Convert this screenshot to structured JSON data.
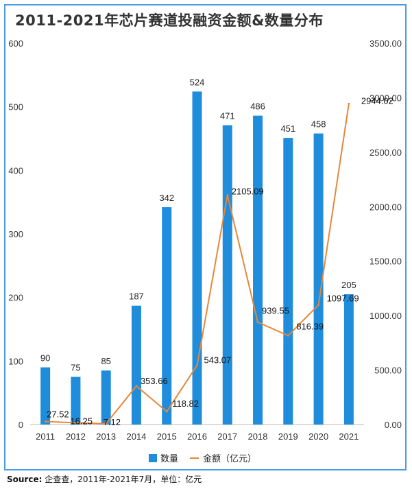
{
  "title": "2011-2021年芯片赛道投融资金额&数量分布",
  "source_label": "Source:",
  "source_text": "企查查，2011年-2021年7月，单位：亿元",
  "colors": {
    "bar": "#1f8ddb",
    "line": "#e6873a",
    "axis": "#333333"
  },
  "chart_data": {
    "type": "bar",
    "categories": [
      "2011",
      "2012",
      "2013",
      "2014",
      "2015",
      "2016",
      "2017",
      "2018",
      "2019",
      "2020",
      "2021"
    ],
    "series": [
      {
        "name": "数量",
        "type": "bar",
        "axis": "left",
        "values": [
          90,
          75,
          85,
          187,
          342,
          524,
          471,
          486,
          451,
          458,
          205
        ],
        "labels": [
          "90",
          "75",
          "85",
          "187",
          "342",
          "524",
          "471",
          "486",
          "451",
          "458",
          "205"
        ]
      },
      {
        "name": "金额（亿元）",
        "type": "line",
        "axis": "right",
        "values": [
          27.52,
          16.25,
          7.12,
          353.66,
          118.82,
          543.07,
          2105.09,
          939.55,
          816.39,
          1097.69,
          2944.02
        ],
        "labels": [
          "27.52",
          "16.25",
          "7.12",
          "353.66",
          "118.82",
          "543.07",
          "2105.09",
          "939.55",
          "816.39",
          "1097.69",
          "2944.02"
        ]
      }
    ],
    "y_left": {
      "min": 0,
      "max": 600,
      "ticks": [
        "0",
        "100",
        "200",
        "300",
        "400",
        "500",
        "600"
      ]
    },
    "y_right": {
      "min": 0,
      "max": 3500,
      "ticks": [
        "0.00",
        "500.00",
        "1000.00",
        "1500.00",
        "2000.00",
        "2500.00",
        "3000.00",
        "3500.00"
      ]
    },
    "grid": false,
    "legend": "bottom"
  }
}
